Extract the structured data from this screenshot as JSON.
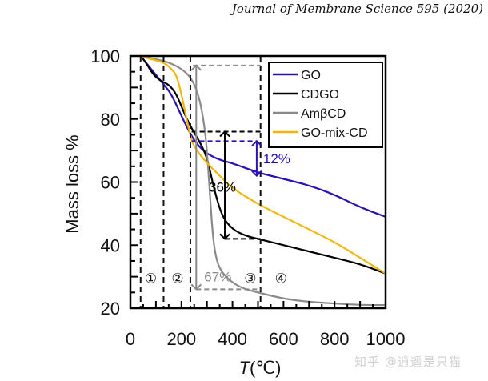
{
  "header": {
    "journal": "Journal of Membrane Science 595 (2020)"
  },
  "watermark": "知乎 @逍遥是只猫",
  "chart_data": {
    "type": "line",
    "title": "",
    "xlabel": "T (℃)",
    "xlabel_italic_part": "T",
    "xlabel_unit": "(℃)",
    "ylabel": "Mass loss %",
    "xlim": [
      0,
      1000
    ],
    "ylim": [
      20,
      100
    ],
    "x_ticks": [
      0,
      200,
      400,
      600,
      800,
      1000
    ],
    "y_ticks": [
      20,
      40,
      60,
      80,
      100
    ],
    "x_tick_labels": [
      "0",
      "200",
      "400",
      "600",
      "800",
      "1000"
    ],
    "y_tick_labels": [
      "20",
      "40",
      "60",
      "80",
      "100"
    ],
    "grid": false,
    "legend_position": "top-right",
    "series": [
      {
        "name": "GO",
        "color": "#2a12b8",
        "points": [
          [
            40,
            100
          ],
          [
            60,
            98
          ],
          [
            90,
            95
          ],
          [
            130,
            91
          ],
          [
            160,
            88
          ],
          [
            200,
            81
          ],
          [
            230,
            76
          ],
          [
            260,
            72
          ],
          [
            300,
            69
          ],
          [
            350,
            67
          ],
          [
            400,
            66
          ],
          [
            500,
            63
          ],
          [
            600,
            61
          ],
          [
            700,
            59
          ],
          [
            800,
            56
          ],
          [
            900,
            52
          ],
          [
            1000,
            49
          ]
        ]
      },
      {
        "name": "CDGO",
        "color": "#000000",
        "points": [
          [
            40,
            100
          ],
          [
            60,
            98
          ],
          [
            90,
            94
          ],
          [
            120,
            92
          ],
          [
            150,
            91
          ],
          [
            180,
            88
          ],
          [
            210,
            82
          ],
          [
            240,
            77
          ],
          [
            270,
            73
          ],
          [
            300,
            68
          ],
          [
            330,
            57
          ],
          [
            360,
            49
          ],
          [
            400,
            45
          ],
          [
            450,
            43
          ],
          [
            500,
            42
          ],
          [
            600,
            40
          ],
          [
            700,
            38
          ],
          [
            800,
            36
          ],
          [
            900,
            34
          ],
          [
            1000,
            31
          ]
        ]
      },
      {
        "name": "AmβCD",
        "color": "#8a8a8a",
        "points": [
          [
            40,
            100
          ],
          [
            100,
            99
          ],
          [
            150,
            98
          ],
          [
            200,
            96
          ],
          [
            240,
            93
          ],
          [
            270,
            87
          ],
          [
            290,
            78
          ],
          [
            300,
            70
          ],
          [
            310,
            58
          ],
          [
            320,
            46
          ],
          [
            330,
            38
          ],
          [
            350,
            32
          ],
          [
            400,
            28
          ],
          [
            450,
            26
          ],
          [
            500,
            25
          ],
          [
            600,
            23
          ],
          [
            700,
            22
          ],
          [
            800,
            21.5
          ],
          [
            900,
            21
          ],
          [
            1000,
            21
          ]
        ]
      },
      {
        "name": "GO-mix-CD",
        "color": "#f2b705",
        "points": [
          [
            40,
            100
          ],
          [
            80,
            99
          ],
          [
            130,
            98
          ],
          [
            160,
            96
          ],
          [
            180,
            94
          ],
          [
            200,
            88
          ],
          [
            220,
            80
          ],
          [
            240,
            73
          ],
          [
            260,
            70
          ],
          [
            300,
            66
          ],
          [
            350,
            62
          ],
          [
            400,
            58
          ],
          [
            500,
            53
          ],
          [
            600,
            49
          ],
          [
            700,
            45
          ],
          [
            800,
            41
          ],
          [
            900,
            36
          ],
          [
            1000,
            31
          ]
        ]
      }
    ],
    "regions": [
      {
        "label": "①",
        "x": 80
      },
      {
        "label": "②",
        "x": 185
      },
      {
        "label": "③",
        "x": 470
      },
      {
        "label": "④",
        "x": 590
      }
    ],
    "region_boundaries_x": [
      40,
      130,
      235,
      510
    ],
    "annotations": [
      {
        "text": "12%",
        "color": "#2a12b8",
        "x_line": 495,
        "y_from": 73,
        "y_to": 62,
        "x_ref_from": 240
      },
      {
        "text": "36%",
        "color": "#000000",
        "x_line": 370,
        "y_from": 76,
        "y_to": 42,
        "x_ref_from": 240,
        "x_ref_to": 510
      },
      {
        "text": "67%",
        "color": "#8a8a8a",
        "x_line": 258,
        "y_from": 97,
        "y_to": 26,
        "x_ref_from": 245,
        "x_ref_to": 510
      }
    ]
  }
}
